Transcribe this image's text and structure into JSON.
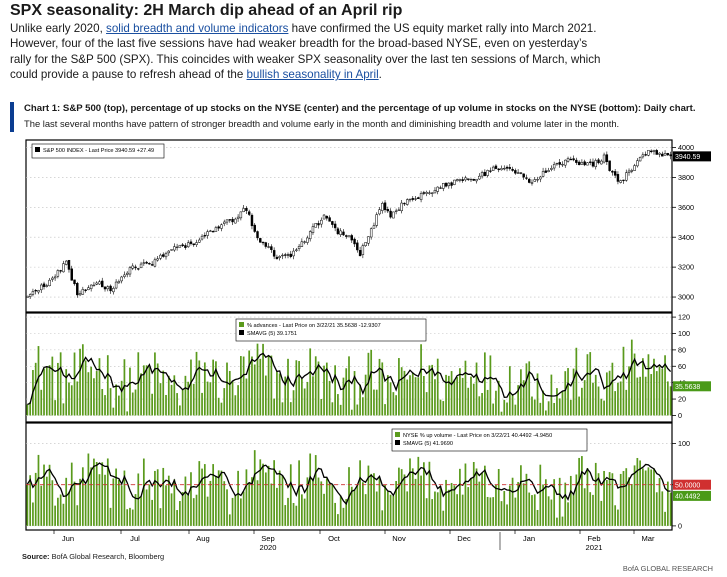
{
  "header": {
    "title": "SPX seasonality: 2H March dip ahead of an April rip",
    "intro_parts": {
      "p1": "Unlike early 2020, ",
      "link1": "solid breadth and volume indicators",
      "p2": " have confirmed the US equity market rally into March 2021. However, four of the last five sessions have had weaker breadth for the broad-based NYSE, even on yesterday’s rally for the S&P 500 (SPX). This coincides with weaker SPX seasonality over the last ten sessions of March, which could provide a pause to refresh ahead of the ",
      "link2": "bullish seasonality in April",
      "p3": "."
    }
  },
  "chart_header": {
    "title": "Chart 1: S&P 500 (top), percentage of up stocks on the NYSE (center) and the percentage of up volume in stocks on the NYSE (bottom): Daily chart.",
    "subtitle": "The last several months have pattern of stronger breadth and volume early in the month and diminishing breadth and volume later in the month."
  },
  "colors": {
    "accent_bar": "#0b3d91",
    "candles": "#000000",
    "bars": "#5a9a1c",
    "sma": "#000000",
    "ref_line": "#d03030",
    "last_tag": "#4a9a18",
    "spx_tag": "#000000"
  },
  "chart_data": [
    {
      "type": "candlestick",
      "legend": "S&P 500 INDEX - Last Price 3940.59 +27.49",
      "last_price": "3940.59",
      "y_ticks": [
        3000,
        3200,
        3400,
        3600,
        3800,
        4000
      ],
      "ylim": [
        2900,
        4050
      ],
      "x_ticks": [
        "Jun",
        "Jul",
        "Aug",
        "Sep",
        "Oct",
        "Nov",
        "Dec",
        "Jan",
        "Feb",
        "Mar"
      ],
      "x_sublabels": [
        "2020",
        "2021"
      ],
      "anchors": [
        [
          0,
          3000
        ],
        [
          8,
          3100
        ],
        [
          14,
          3230
        ],
        [
          18,
          3020
        ],
        [
          25,
          3110
        ],
        [
          30,
          3040
        ],
        [
          37,
          3190
        ],
        [
          45,
          3230
        ],
        [
          52,
          3320
        ],
        [
          60,
          3360
        ],
        [
          67,
          3450
        ],
        [
          74,
          3520
        ],
        [
          79,
          3590
        ],
        [
          82,
          3420
        ],
        [
          87,
          3330
        ],
        [
          90,
          3250
        ],
        [
          97,
          3300
        ],
        [
          103,
          3460
        ],
        [
          107,
          3530
        ],
        [
          112,
          3440
        ],
        [
          117,
          3390
        ],
        [
          120,
          3290
        ],
        [
          123,
          3410
        ],
        [
          128,
          3620
        ],
        [
          131,
          3550
        ],
        [
          137,
          3640
        ],
        [
          145,
          3700
        ],
        [
          152,
          3760
        ],
        [
          160,
          3790
        ],
        [
          168,
          3850
        ],
        [
          174,
          3870
        ],
        [
          182,
          3760
        ],
        [
          186,
          3840
        ],
        [
          195,
          3920
        ],
        [
          203,
          3880
        ],
        [
          208,
          3940
        ],
        [
          211,
          3820
        ],
        [
          214,
          3770
        ],
        [
          220,
          3910
        ],
        [
          225,
          3990
        ],
        [
          228,
          3960
        ],
        [
          232,
          3940
        ]
      ]
    },
    {
      "type": "bar",
      "legend": [
        "% advances - Last Price on 3/22/21 35.5638 -12.9307",
        "SMAVG (5)          39.1751"
      ],
      "last_value": "35.5638",
      "y_ticks": [
        0,
        20,
        40,
        60,
        80,
        100,
        120
      ],
      "ylim": [
        -8,
        125
      ],
      "seed": 12345,
      "base": 46,
      "amplitude": 34
    },
    {
      "type": "bar",
      "legend": [
        "NYSE % up volume - Last Price on 3/22/21 40.4492 -4.9450",
        "SMAVG (5)          41.9690"
      ],
      "last_value": "40.4492",
      "ref_value": "50.0000",
      "y_ticks": [
        0,
        50,
        100
      ],
      "ylim": [
        -5,
        125
      ],
      "seed": 98765,
      "base": 50,
      "amplitude": 30
    }
  ],
  "footer": {
    "source_label": "Source:",
    "source_text": " BofA Global Research, Bloomberg",
    "brand": "BofA GLOBAL RESEARCH"
  }
}
